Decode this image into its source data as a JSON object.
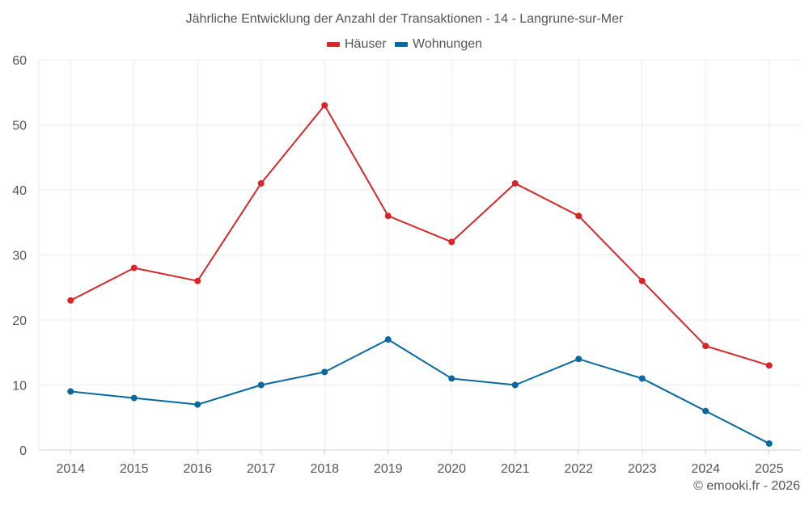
{
  "chart_data": {
    "type": "line",
    "title": "Jährliche Entwicklung der Anzahl der Transaktionen - 14 - Langrune-sur-Mer",
    "xlabel": "",
    "ylabel": "",
    "categories": [
      "2014",
      "2015",
      "2016",
      "2017",
      "2018",
      "2019",
      "2020",
      "2021",
      "2022",
      "2023",
      "2024",
      "2025"
    ],
    "series": [
      {
        "name": "Häuser",
        "color": "#d62728",
        "values": [
          23,
          28,
          26,
          41,
          53,
          36,
          32,
          41,
          36,
          26,
          16,
          13
        ]
      },
      {
        "name": "Wohnungen",
        "color": "#0868a0",
        "values": [
          9,
          8,
          7,
          10,
          12,
          17,
          11,
          10,
          14,
          11,
          6,
          1
        ]
      }
    ],
    "ylim": [
      0,
      60
    ],
    "yticks": [
      0,
      10,
      20,
      30,
      40,
      50,
      60
    ],
    "grid": true,
    "legend_position": "top"
  },
  "credit": "© emooki.fr - 2026"
}
